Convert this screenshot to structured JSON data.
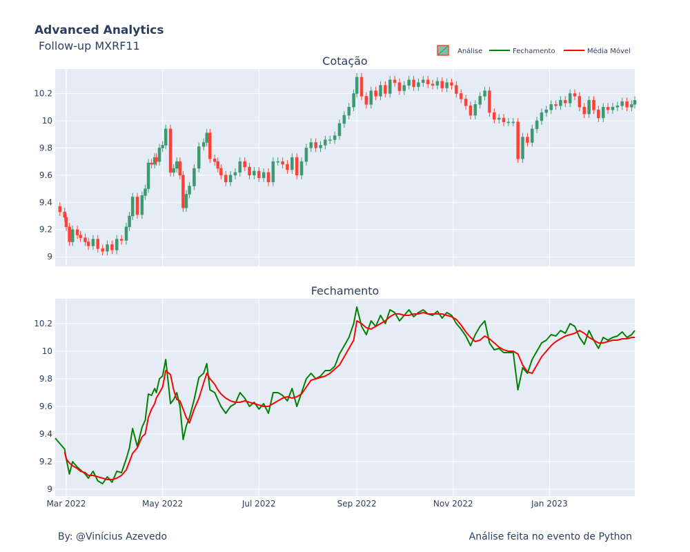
{
  "header": {
    "title": "Advanced Analytics",
    "subtitle": "Follow-up MXRF11"
  },
  "footer": {
    "left": "By: @Vinícius Azevedo",
    "right": "Análise feita no evento de Python"
  },
  "legend": {
    "placement": "top-right",
    "items": [
      {
        "name": "Análise",
        "type": "candlestick",
        "color": "#3d9970"
      },
      {
        "name": "Fechamento",
        "type": "line",
        "color": "#008000"
      },
      {
        "name": "Média Móvel",
        "type": "line",
        "color": "#ff0000"
      }
    ]
  },
  "colors": {
    "plot_bg": "#e5ecf6",
    "grid": "#ffffff",
    "increasing": "#3d9970",
    "decreasing": "#ff4136",
    "close_line": "#008000",
    "ma_line": "#ff0000",
    "text": "#2a3f5f"
  },
  "chart_data": [
    {
      "type": "candlestick",
      "title": "Cotação",
      "ylim": [
        8.93,
        10.38
      ],
      "yticks": [
        9,
        9.2,
        9.4,
        9.6,
        9.8,
        10,
        10.2
      ],
      "ytick_labels": [
        "9",
        "9.2",
        "9.4",
        "9.6",
        "9.8",
        "10",
        "10.2"
      ],
      "grid": true,
      "series_ref": "Análise"
    },
    {
      "type": "line",
      "title": "Fechamento",
      "ylim": [
        8.95,
        10.38
      ],
      "yticks": [
        9,
        9.2,
        9.4,
        9.6,
        9.8,
        10,
        10.2
      ],
      "ytick_labels": [
        "9",
        "9.2",
        "9.4",
        "9.6",
        "9.8",
        "10",
        "10.2"
      ],
      "grid": true,
      "xlim": [
        "2022-02-22",
        "2023-02-24"
      ],
      "xticks": [
        "2022-03-01",
        "2022-05-01",
        "2022-07-01",
        "2022-09-01",
        "2022-11-01",
        "2023-01-01"
      ],
      "xtick_labels": [
        "Mar 2022",
        "May 2022",
        "Jul 2022",
        "Sep 2022",
        "Nov 2022",
        "Jan 2023"
      ],
      "series": [
        {
          "name": "Fechamento",
          "color": "#008000",
          "x": [
            "2022-02-22",
            "2022-02-25",
            "2022-02-28",
            "2022-03-01",
            "2022-03-03",
            "2022-03-05",
            "2022-03-08",
            "2022-03-10",
            "2022-03-13",
            "2022-03-15",
            "2022-03-18",
            "2022-03-21",
            "2022-03-24",
            "2022-03-27",
            "2022-03-30",
            "2022-04-02",
            "2022-04-05",
            "2022-04-08",
            "2022-04-10",
            "2022-04-12",
            "2022-04-15",
            "2022-04-18",
            "2022-04-20",
            "2022-04-22",
            "2022-04-24",
            "2022-04-26",
            "2022-04-27",
            "2022-04-29",
            "2022-05-01",
            "2022-05-03",
            "2022-05-06",
            "2022-05-08",
            "2022-05-10",
            "2022-05-12",
            "2022-05-14",
            "2022-05-16",
            "2022-05-18",
            "2022-05-21",
            "2022-05-24",
            "2022-05-27",
            "2022-05-29",
            "2022-05-31",
            "2022-06-03",
            "2022-06-05",
            "2022-06-07",
            "2022-06-10",
            "2022-06-13",
            "2022-06-16",
            "2022-06-19",
            "2022-06-22",
            "2022-06-25",
            "2022-06-28",
            "2022-07-01",
            "2022-07-04",
            "2022-07-07",
            "2022-07-10",
            "2022-07-13",
            "2022-07-16",
            "2022-07-19",
            "2022-07-22",
            "2022-07-25",
            "2022-07-28",
            "2022-07-31",
            "2022-08-03",
            "2022-08-06",
            "2022-08-09",
            "2022-08-12",
            "2022-08-15",
            "2022-08-18",
            "2022-08-21",
            "2022-08-24",
            "2022-08-27",
            "2022-08-30",
            "2022-09-01",
            "2022-09-04",
            "2022-09-07",
            "2022-09-10",
            "2022-09-13",
            "2022-09-16",
            "2022-09-19",
            "2022-09-22",
            "2022-09-25",
            "2022-09-28",
            "2022-10-01",
            "2022-10-04",
            "2022-10-07",
            "2022-10-10",
            "2022-10-13",
            "2022-10-16",
            "2022-10-19",
            "2022-10-22",
            "2022-10-25",
            "2022-10-28",
            "2022-10-31",
            "2022-11-03",
            "2022-11-06",
            "2022-11-09",
            "2022-11-12",
            "2022-11-15",
            "2022-11-18",
            "2022-11-21",
            "2022-11-24",
            "2022-11-27",
            "2022-11-30",
            "2022-12-03",
            "2022-12-06",
            "2022-12-09",
            "2022-12-12",
            "2022-12-15",
            "2022-12-18",
            "2022-12-21",
            "2022-12-24",
            "2022-12-27",
            "2022-12-30",
            "2023-01-02",
            "2023-01-05",
            "2023-01-08",
            "2023-01-11",
            "2023-01-14",
            "2023-01-17",
            "2023-01-20",
            "2023-01-23",
            "2023-01-26",
            "2023-01-29",
            "2023-02-01",
            "2023-02-04",
            "2023-02-07",
            "2023-02-10",
            "2023-02-13",
            "2023-02-16",
            "2023-02-19",
            "2023-02-22",
            "2023-02-24"
          ],
          "values": [
            9.37,
            9.33,
            9.29,
            9.22,
            9.11,
            9.2,
            9.16,
            9.14,
            9.11,
            9.08,
            9.13,
            9.06,
            9.04,
            9.09,
            9.05,
            9.13,
            9.12,
            9.22,
            9.3,
            9.44,
            9.31,
            9.45,
            9.5,
            9.69,
            9.68,
            9.73,
            9.7,
            9.8,
            9.82,
            9.94,
            9.62,
            9.65,
            9.7,
            9.6,
            9.36,
            9.46,
            9.52,
            9.65,
            9.81,
            9.84,
            9.91,
            9.72,
            9.7,
            9.65,
            9.6,
            9.55,
            9.6,
            9.62,
            9.7,
            9.66,
            9.6,
            9.63,
            9.58,
            9.62,
            9.55,
            9.7,
            9.7,
            9.68,
            9.64,
            9.73,
            9.6,
            9.7,
            9.8,
            9.84,
            9.8,
            9.82,
            9.86,
            9.86,
            9.89,
            9.98,
            10.04,
            10.1,
            10.2,
            10.32,
            10.18,
            10.12,
            10.22,
            10.18,
            10.26,
            10.2,
            10.3,
            10.28,
            10.22,
            10.26,
            10.3,
            10.25,
            10.28,
            10.3,
            10.27,
            10.26,
            10.29,
            10.24,
            10.28,
            10.26,
            10.2,
            10.16,
            10.11,
            10.04,
            10.12,
            10.18,
            10.22,
            10.06,
            10.01,
            10.02,
            9.99,
            9.99,
            9.99,
            9.72,
            9.88,
            9.84,
            9.94,
            10.0,
            10.06,
            10.08,
            10.12,
            10.11,
            10.15,
            10.13,
            10.2,
            10.18,
            10.1,
            10.05,
            10.15,
            10.08,
            10.02,
            10.1,
            10.08,
            10.1,
            10.11,
            10.14,
            10.1,
            10.12,
            10.15
          ]
        },
        {
          "name": "Média Móvel",
          "color": "#ff0000",
          "x": [
            "2022-02-28",
            "2022-03-01",
            "2022-03-03",
            "2022-03-05",
            "2022-03-08",
            "2022-03-10",
            "2022-03-13",
            "2022-03-15",
            "2022-03-18",
            "2022-03-21",
            "2022-03-24",
            "2022-03-27",
            "2022-03-30",
            "2022-04-02",
            "2022-04-05",
            "2022-04-08",
            "2022-04-10",
            "2022-04-12",
            "2022-04-15",
            "2022-04-18",
            "2022-04-20",
            "2022-04-22",
            "2022-04-24",
            "2022-04-26",
            "2022-04-27",
            "2022-04-29",
            "2022-05-01",
            "2022-05-03",
            "2022-05-06",
            "2022-05-08",
            "2022-05-10",
            "2022-05-12",
            "2022-05-14",
            "2022-05-16",
            "2022-05-18",
            "2022-05-21",
            "2022-05-24",
            "2022-05-27",
            "2022-05-29",
            "2022-05-31",
            "2022-06-03",
            "2022-06-05",
            "2022-06-07",
            "2022-06-10",
            "2022-06-13",
            "2022-06-16",
            "2022-06-19",
            "2022-06-22",
            "2022-06-25",
            "2022-06-28",
            "2022-07-01",
            "2022-07-04",
            "2022-07-07",
            "2022-07-10",
            "2022-07-13",
            "2022-07-16",
            "2022-07-19",
            "2022-07-22",
            "2022-07-25",
            "2022-07-28",
            "2022-07-31",
            "2022-08-03",
            "2022-08-06",
            "2022-08-09",
            "2022-08-12",
            "2022-08-15",
            "2022-08-18",
            "2022-08-21",
            "2022-08-24",
            "2022-08-27",
            "2022-08-30",
            "2022-09-01",
            "2022-09-04",
            "2022-09-07",
            "2022-09-10",
            "2022-09-13",
            "2022-09-16",
            "2022-09-19",
            "2022-09-22",
            "2022-09-25",
            "2022-09-28",
            "2022-10-01",
            "2022-10-04",
            "2022-10-07",
            "2022-10-10",
            "2022-10-13",
            "2022-10-16",
            "2022-10-19",
            "2022-10-22",
            "2022-10-25",
            "2022-10-28",
            "2022-10-31",
            "2022-11-03",
            "2022-11-06",
            "2022-11-09",
            "2022-11-12",
            "2022-11-15",
            "2022-11-18",
            "2022-11-21",
            "2022-11-24",
            "2022-11-27",
            "2022-11-30",
            "2022-12-03",
            "2022-12-06",
            "2022-12-09",
            "2022-12-12",
            "2022-12-15",
            "2022-12-18",
            "2022-12-21",
            "2022-12-24",
            "2022-12-27",
            "2022-12-30",
            "2023-01-02",
            "2023-01-05",
            "2023-01-08",
            "2023-01-11",
            "2023-01-14",
            "2023-01-17",
            "2023-01-20",
            "2023-01-23",
            "2023-01-26",
            "2023-01-29",
            "2023-02-01",
            "2023-02-04",
            "2023-02-07",
            "2023-02-10",
            "2023-02-13",
            "2023-02-16",
            "2023-02-19",
            "2023-02-22",
            "2023-02-24"
          ],
          "values": [
            9.27,
            9.22,
            9.19,
            9.17,
            9.15,
            9.13,
            9.12,
            9.1,
            9.1,
            9.09,
            9.08,
            9.07,
            9.07,
            9.08,
            9.1,
            9.14,
            9.2,
            9.26,
            9.3,
            9.38,
            9.4,
            9.52,
            9.58,
            9.62,
            9.66,
            9.7,
            9.74,
            9.86,
            9.83,
            9.72,
            9.65,
            9.64,
            9.58,
            9.52,
            9.48,
            9.58,
            9.66,
            9.77,
            9.84,
            9.8,
            9.76,
            9.72,
            9.69,
            9.66,
            9.64,
            9.63,
            9.63,
            9.64,
            9.63,
            9.62,
            9.61,
            9.6,
            9.6,
            9.62,
            9.64,
            9.66,
            9.67,
            9.66,
            9.67,
            9.69,
            9.74,
            9.79,
            9.8,
            9.81,
            9.82,
            9.84,
            9.87,
            9.9,
            9.96,
            10.02,
            10.08,
            10.22,
            10.2,
            10.17,
            10.16,
            10.18,
            10.2,
            10.22,
            10.25,
            10.27,
            10.27,
            10.26,
            10.26,
            10.27,
            10.27,
            10.28,
            10.27,
            10.27,
            10.27,
            10.27,
            10.26,
            10.25,
            10.23,
            10.19,
            10.14,
            10.1,
            10.07,
            10.08,
            10.11,
            10.09,
            10.06,
            10.03,
            10.01,
            10.0,
            10.0,
            9.98,
            9.9,
            9.85,
            9.84,
            9.9,
            9.96,
            10.0,
            10.04,
            10.07,
            10.09,
            10.11,
            10.12,
            10.13,
            10.15,
            10.13,
            10.1,
            10.08,
            10.06,
            10.06,
            10.07,
            10.08,
            10.08,
            10.09,
            10.09,
            10.1,
            10.1
          ]
        }
      ]
    }
  ]
}
